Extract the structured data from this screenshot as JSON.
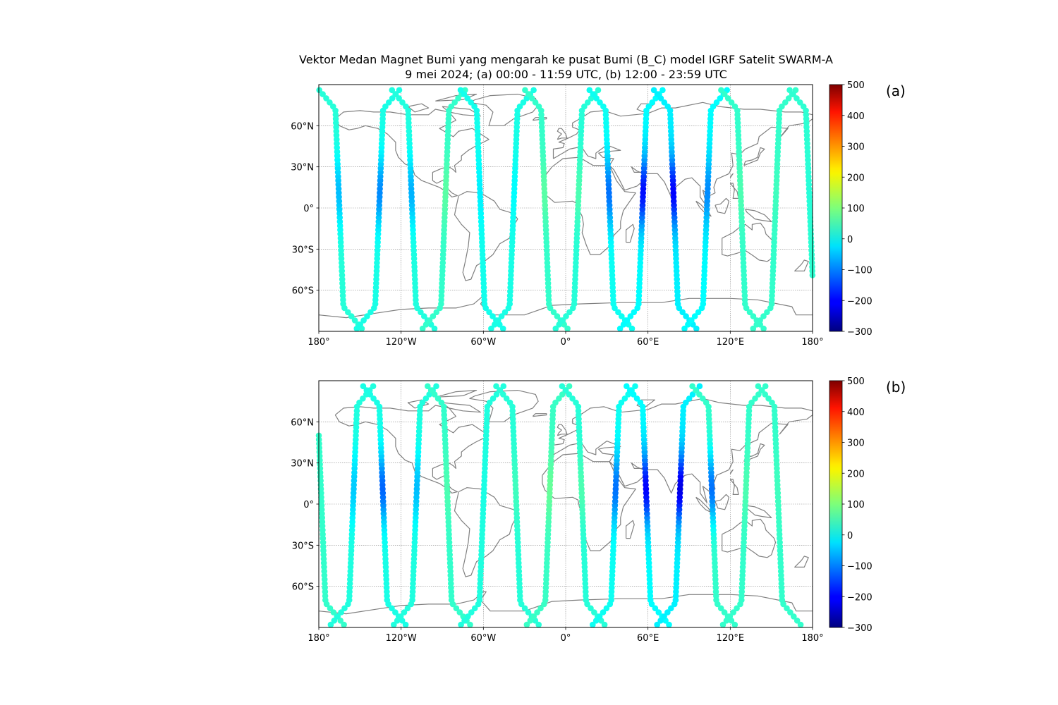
{
  "title": {
    "line1": "Vektor Medan Magnet Bumi yang mengarah ke pusat Bumi (B_C) model IGRF Satelit SWARM-A",
    "line2": "9 mei 2024; (a) 00:00 - 11:59 UTC, (b) 12:00 - 23:59 UTC"
  },
  "chart_data": [
    {
      "type": "scatter",
      "panel_label": "(a)",
      "x_tick_labels": [
        "180°",
        "120°W",
        "60°W",
        "0°",
        "60°E",
        "120°E",
        "180°"
      ],
      "y_tick_labels": [
        "60°N",
        "30°N",
        "0°",
        "30°S",
        "60°S"
      ],
      "xlim": [
        -180,
        180
      ],
      "ylim": [
        -90,
        90
      ],
      "grid": true,
      "colormap": "jet",
      "colorbar": {
        "range": [
          -300,
          500
        ],
        "tick_labels": [
          "500",
          "400",
          "300",
          "200",
          "100",
          "0",
          "−100",
          "−200",
          "−300"
        ]
      },
      "tracks": [
        {
          "lon": -165,
          "value": 30,
          "min_value": -50
        },
        {
          "lon": -136,
          "value": 20,
          "min_value": -90
        },
        {
          "lon": -112,
          "value": 25,
          "min_value": -60
        },
        {
          "lon": -88,
          "value": 40,
          "min_value": 70
        },
        {
          "lon": -62,
          "value": 15,
          "min_value": -10
        },
        {
          "lon": -38,
          "value": 20,
          "min_value": 0
        },
        {
          "lon": -15,
          "value": 40,
          "min_value": 70
        },
        {
          "lon": 9,
          "value": 30,
          "min_value": 60
        },
        {
          "lon": 32,
          "value": 10,
          "min_value": -110
        },
        {
          "lon": 56,
          "value": 0,
          "min_value": -190
        },
        {
          "lon": 79,
          "value": -10,
          "min_value": -200
        },
        {
          "lon": 103,
          "value": 0,
          "min_value": -90
        },
        {
          "lon": 128,
          "value": 40,
          "min_value": 60
        },
        {
          "lon": 153,
          "value": 40,
          "min_value": 50
        },
        {
          "lon": 178,
          "value": 35,
          "min_value": 30
        }
      ]
    },
    {
      "type": "scatter",
      "panel_label": "(b)",
      "x_tick_labels": [
        "180°",
        "120°W",
        "60°W",
        "0°",
        "60°E",
        "120°E",
        "180°"
      ],
      "y_tick_labels": [
        "60°N",
        "30°N",
        "0°",
        "30°S",
        "60°S"
      ],
      "xlim": [
        -180,
        180
      ],
      "ylim": [
        -90,
        90
      ],
      "grid": true,
      "colormap": "jet",
      "colorbar": {
        "range": [
          -300,
          500
        ],
        "tick_labels": [
          "500",
          "400",
          "300",
          "200",
          "100",
          "0",
          "−100",
          "−200",
          "−300"
        ]
      },
      "tracks": [
        {
          "lon": -178,
          "value": 40,
          "min_value": 40
        },
        {
          "lon": -155,
          "value": 25,
          "min_value": -40
        },
        {
          "lon": -133,
          "value": 20,
          "min_value": -120
        },
        {
          "lon": -109,
          "value": 25,
          "min_value": -50
        },
        {
          "lon": -86,
          "value": 40,
          "min_value": 60
        },
        {
          "lon": -60,
          "value": 25,
          "min_value": 20
        },
        {
          "lon": -36,
          "value": 30,
          "min_value": 50
        },
        {
          "lon": -12,
          "value": 45,
          "min_value": 80
        },
        {
          "lon": 12,
          "value": 30,
          "min_value": 60
        },
        {
          "lon": 36,
          "value": 10,
          "min_value": -110
        },
        {
          "lon": 59,
          "value": 0,
          "min_value": -200
        },
        {
          "lon": 83,
          "value": -10,
          "min_value": -220
        },
        {
          "lon": 107,
          "value": 40,
          "min_value": -110
        },
        {
          "lon": 131,
          "value": 40,
          "min_value": 60
        },
        {
          "lon": 155,
          "value": 40,
          "min_value": 50
        }
      ]
    }
  ]
}
